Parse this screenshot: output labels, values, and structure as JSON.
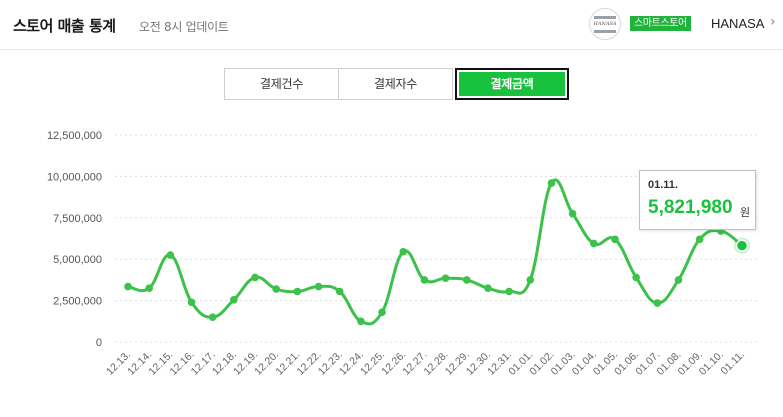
{
  "header": {
    "title": "스토어 매출 통계",
    "subtitle": "오전 8시 업데이트",
    "store_logo_text": "HANASA",
    "store_badge": "스마트스토어",
    "store_name": "HANASA",
    "chevron": "›"
  },
  "tabs": [
    {
      "label": "결제건수",
      "active": false
    },
    {
      "label": "결제자수",
      "active": false
    },
    {
      "label": "결제금액",
      "active": true
    }
  ],
  "tooltip": {
    "date": "01.11.",
    "value": "5,821,980",
    "unit": "원"
  },
  "colors": {
    "accent": "#19c23c",
    "line": "#3cc14a",
    "badge": "#21b33b"
  },
  "chart_data": {
    "type": "line",
    "x": [
      "12.13.",
      "12.14.",
      "12.15.",
      "12.16.",
      "12.17.",
      "12.18.",
      "12.19.",
      "12.20.",
      "12.21.",
      "12.22.",
      "12.23.",
      "12.24.",
      "12.25.",
      "12.26.",
      "12.27.",
      "12.28.",
      "12.29.",
      "12.30.",
      "12.31.",
      "01.01.",
      "01.02.",
      "01.03.",
      "01.04.",
      "01.05.",
      "01.06.",
      "01.07.",
      "01.08.",
      "01.09.",
      "01.10.",
      "01.11."
    ],
    "series": [
      {
        "values": [
          3350000,
          3250000,
          5250000,
          2400000,
          1500000,
          2550000,
          3900000,
          3200000,
          3050000,
          3350000,
          3050000,
          1250000,
          1800000,
          5450000,
          3750000,
          3850000,
          3750000,
          3250000,
          3050000,
          3750000,
          9600000,
          7750000,
          5950000,
          6200000,
          3900000,
          2350000,
          3750000,
          6200000,
          6700000,
          5821980
        ]
      }
    ],
    "y_ticks": [
      "12,500,000",
      "10,000,000",
      "7,500,000",
      "5,000,000",
      "2,500,000",
      "0"
    ],
    "ylim": [
      0,
      12500000
    ],
    "grid": true,
    "highlighted_index": 29
  }
}
